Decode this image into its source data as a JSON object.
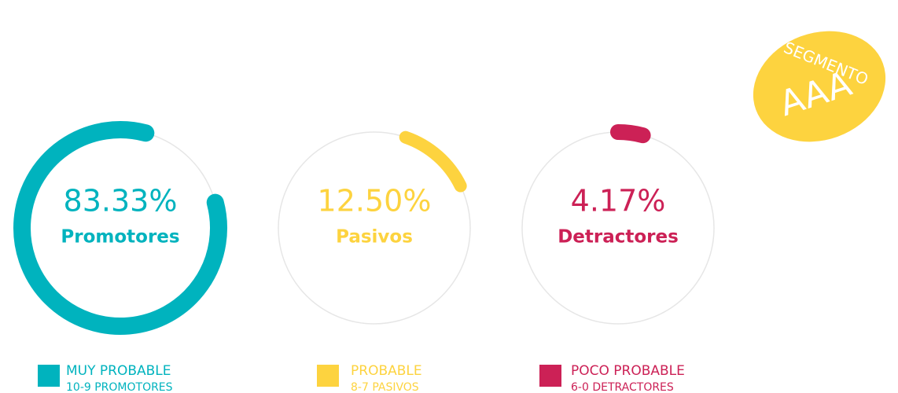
{
  "gauges": [
    {
      "value": 83.33,
      "value_label": "83.33%",
      "label": "Promotores",
      "color": "#00b3be",
      "legend_title": "MUY PROBABLE",
      "legend_subtitle": "10-9 PROMOTORES"
    },
    {
      "value": 12.5,
      "value_label": "12.50%",
      "label": "Pasivos",
      "color": "#fdd33f",
      "legend_title": "PROBABLE",
      "legend_subtitle": "8-7 PASIVOS"
    },
    {
      "value": 4.17,
      "value_label": "4.17%",
      "label": "Detractores",
      "color": "#cc2156",
      "legend_title": "POCO PROBABLE",
      "legend_subtitle": "6-0 DETRACTORES"
    }
  ],
  "badge": {
    "top": "SEGMENTO",
    "bottom": "AAA",
    "color": "#fdd33f"
  }
}
